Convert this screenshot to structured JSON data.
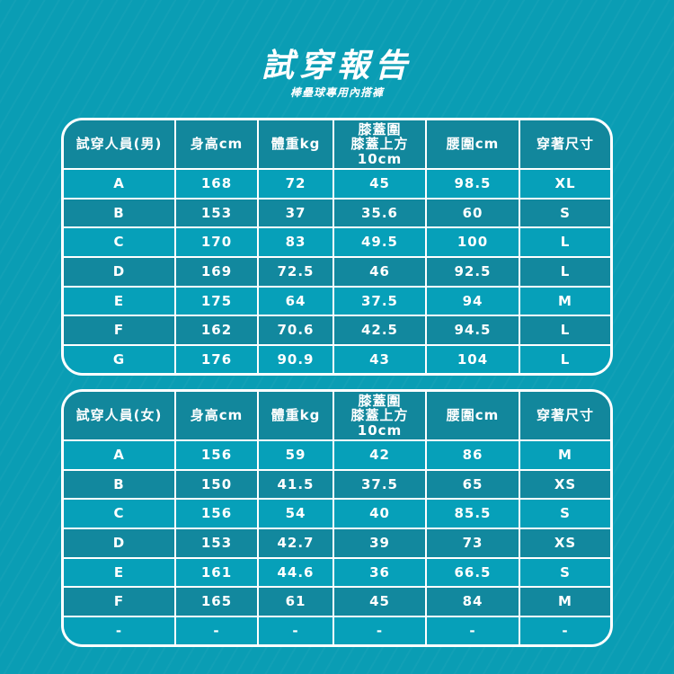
{
  "title": "試穿報告",
  "subtitle": "棒壘球專用內搭褲",
  "colors": {
    "background": "#0a9db4",
    "header": "#12879c",
    "row_light": "#06a0b9",
    "row_dark": "#12889e"
  },
  "male": {
    "headers": [
      "試穿人員(男)",
      "身高cm",
      "體重kg",
      "膝蓋圍\n膝蓋上方10cm",
      "腰圍cm",
      "穿著尺寸"
    ],
    "rows": [
      [
        "A",
        "168",
        "72",
        "45",
        "98.5",
        "XL"
      ],
      [
        "B",
        "153",
        "37",
        "35.6",
        "60",
        "S"
      ],
      [
        "C",
        "170",
        "83",
        "49.5",
        "100",
        "L"
      ],
      [
        "D",
        "169",
        "72.5",
        "46",
        "92.5",
        "L"
      ],
      [
        "E",
        "175",
        "64",
        "37.5",
        "94",
        "M"
      ],
      [
        "F",
        "162",
        "70.6",
        "42.5",
        "94.5",
        "L"
      ],
      [
        "G",
        "176",
        "90.9",
        "43",
        "104",
        "L"
      ]
    ]
  },
  "female": {
    "headers": [
      "試穿人員(女)",
      "身高cm",
      "體重kg",
      "膝蓋圍\n膝蓋上方10cm",
      "腰圍cm",
      "穿著尺寸"
    ],
    "rows": [
      [
        "A",
        "156",
        "59",
        "42",
        "86",
        "M"
      ],
      [
        "B",
        "150",
        "41.5",
        "37.5",
        "65",
        "XS"
      ],
      [
        "C",
        "156",
        "54",
        "40",
        "85.5",
        "S"
      ],
      [
        "D",
        "153",
        "42.7",
        "39",
        "73",
        "XS"
      ],
      [
        "E",
        "161",
        "44.6",
        "36",
        "66.5",
        "S"
      ],
      [
        "F",
        "165",
        "61",
        "45",
        "84",
        "M"
      ],
      [
        "-",
        "-",
        "-",
        "-",
        "-",
        "-"
      ]
    ]
  }
}
